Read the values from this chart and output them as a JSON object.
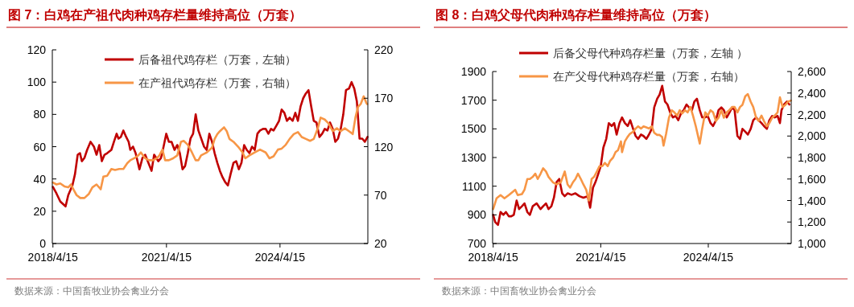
{
  "chart_data": [
    {
      "type": "line",
      "title": "图 7：白鸡在产祖代肉种鸡存栏量维持高位（万套）",
      "legend": "top",
      "grid": false,
      "line_style": "solid",
      "marker": "none",
      "xlim": [
        "2018-04-09",
        "2026-08-11"
      ],
      "xticks": [
        {
          "value": "2018-04-15",
          "label": "2018/4/15"
        },
        {
          "value": "2021-04-15",
          "label": "2021/4/15"
        },
        {
          "value": "2024-04-15",
          "label": "2024/4/15"
        }
      ],
      "ylim": [
        0,
        120
      ],
      "yticks": [
        0,
        20,
        40,
        60,
        80,
        100,
        120
      ],
      "y2lim": [
        20,
        220
      ],
      "y2ticks": [
        20,
        70,
        120,
        170,
        220
      ],
      "annotations": [
        "数据来源：中国畜牧业协会禽业分会"
      ],
      "series": [
        {
          "name": "后备祖代鸡存栏（万套，左轴）",
          "color": "#c00000",
          "x": [
            "2018-04-15",
            "2018-05-19",
            "2018-06-25",
            "2018-08-15",
            "2018-09-10",
            "2018-10-20",
            "2018-11-14",
            "2018-12-10",
            "2019-01-01",
            "2019-01-19",
            "2019-02-13",
            "2019-03-11",
            "2019-04-13",
            "2019-05-16",
            "2019-06-10",
            "2019-07-06",
            "2019-07-31",
            "2019-08-26",
            "2019-09-21",
            "2019-10-31",
            "2019-11-25",
            "2019-12-21",
            "2020-01-08",
            "2020-01-30",
            "2020-02-24",
            "2020-03-22",
            "2020-04-15",
            "2020-05-01",
            "2020-05-27",
            "2020-06-21",
            "2020-07-28",
            "2020-08-26",
            "2020-09-21",
            "2020-10-16",
            "2020-11-22",
            "2020-12-17",
            "2021-01-26",
            "2021-02-21",
            "2021-03-18",
            "2021-04-13",
            "2021-05-08",
            "2021-06-03",
            "2021-07-02",
            "2021-07-28",
            "2021-08-22",
            "2021-09-17",
            "2021-10-12",
            "2021-11-07",
            "2021-12-03",
            "2021-12-28",
            "2022-01-22",
            "2022-02-17",
            "2022-04-13",
            "2022-05-08",
            "2022-06-03",
            "2022-06-29",
            "2022-07-24",
            "2022-08-19",
            "2022-09-13",
            "2022-10-09",
            "2022-11-03",
            "2022-11-29",
            "2022-12-25",
            "2023-01-22",
            "2023-02-17",
            "2023-03-15",
            "2023-04-09",
            "2023-05-05",
            "2023-05-30",
            "2023-06-25",
            "2023-07-20",
            "2023-08-15",
            "2023-09-10",
            "2023-10-05",
            "2023-11-03",
            "2023-11-29",
            "2023-12-25",
            "2024-01-19",
            "2024-02-13",
            "2024-03-11",
            "2024-04-06",
            "2024-05-01",
            "2024-05-27",
            "2024-06-21",
            "2024-07-17",
            "2024-08-15",
            "2024-09-10",
            "2024-10-05",
            "2024-10-31",
            "2024-11-25",
            "2024-12-21",
            "2025-01-15",
            "2025-02-10",
            "2025-03-07",
            "2025-04-02",
            "2025-05-01",
            "2025-05-27",
            "2025-06-21",
            "2025-07-17",
            "2025-08-11",
            "2025-09-06",
            "2025-10-01",
            "2025-10-27",
            "2025-11-22",
            "2025-12-17",
            "2026-01-12",
            "2026-02-10",
            "2026-03-07",
            "2026-04-02",
            "2026-04-27",
            "2026-05-23",
            "2026-06-18",
            "2026-07-13",
            "2026-08-08"
          ],
          "values": [
            35,
            31,
            26,
            23,
            30,
            36,
            43,
            55,
            56,
            51,
            53,
            58,
            63,
            60,
            55,
            61,
            51,
            55,
            56,
            58,
            63,
            68,
            65,
            66,
            70,
            66,
            63,
            58,
            60,
            56,
            46,
            53,
            55,
            51,
            45,
            55,
            51,
            53,
            60,
            68,
            63,
            63,
            58,
            61,
            56,
            46,
            48,
            56,
            65,
            68,
            80,
            70,
            60,
            58,
            68,
            63,
            56,
            50,
            45,
            41,
            38,
            36,
            43,
            50,
            51,
            46,
            50,
            61,
            58,
            56,
            60,
            58,
            68,
            70,
            71,
            71,
            68,
            71,
            70,
            73,
            76,
            83,
            81,
            76,
            78,
            76,
            81,
            76,
            85,
            90,
            93,
            95,
            85,
            76,
            75,
            66,
            68,
            71,
            70,
            75,
            71,
            63,
            65,
            71,
            80,
            95,
            96,
            100,
            96,
            88,
            65,
            65,
            63,
            66
          ]
        },
        {
          "name": "在产祖代鸡存栏（万套，右轴）",
          "color": "#f79646",
          "axis": "y2",
          "x": [
            "2018-04-15",
            "2018-05-19",
            "2018-06-25",
            "2018-08-04",
            "2018-09-10",
            "2018-10-05",
            "2018-11-03",
            "2018-11-29",
            "2019-01-04",
            "2019-02-13",
            "2019-03-26",
            "2019-05-01",
            "2019-06-10",
            "2019-07-20",
            "2019-08-15",
            "2019-09-21",
            "2019-10-31",
            "2019-12-06",
            "2020-01-15",
            "2020-02-24",
            "2020-04-02",
            "2020-05-01",
            "2020-06-07",
            "2020-07-17",
            "2020-08-11",
            "2020-09-21",
            "2020-10-27",
            "2020-12-06",
            "2021-01-12",
            "2021-02-06",
            "2021-03-07",
            "2021-04-02",
            "2021-05-08",
            "2021-06-18",
            "2021-07-28",
            "2021-09-02",
            "2021-09-28",
            "2021-11-07",
            "2021-12-17",
            "2022-01-22",
            "2022-02-17",
            "2022-03-15",
            "2022-05-08",
            "2022-06-29",
            "2022-07-24",
            "2022-08-19",
            "2022-09-13",
            "2022-10-23",
            "2022-11-18",
            "2022-12-14",
            "2023-01-22",
            "2023-03-15",
            "2023-04-20",
            "2023-05-16",
            "2023-06-25",
            "2023-08-15",
            "2023-10-05",
            "2023-11-29",
            "2024-01-04",
            "2024-02-13",
            "2024-03-26",
            "2024-05-01",
            "2024-06-10",
            "2024-07-17",
            "2024-08-26",
            "2024-10-05",
            "2024-11-11",
            "2024-12-21",
            "2025-01-30",
            "2025-03-07",
            "2025-04-15",
            "2025-05-12",
            "2025-06-21",
            "2025-07-28",
            "2025-09-06",
            "2025-10-16",
            "2025-11-22",
            "2026-01-01",
            "2026-02-10",
            "2026-03-18",
            "2026-04-13",
            "2026-05-08",
            "2026-06-03",
            "2026-07-02",
            "2026-07-28",
            "2026-08-04"
          ],
          "values": [
            83,
            81,
            82,
            79,
            78,
            81,
            75,
            70,
            67,
            67,
            71,
            78,
            81,
            76,
            89,
            90,
            97,
            96,
            97,
            97,
            103,
            106,
            108,
            111,
            114,
            108,
            106,
            106,
            108,
            111,
            117,
            106,
            106,
            108,
            111,
            125,
            126,
            122,
            114,
            106,
            106,
            111,
            114,
            119,
            128,
            133,
            136,
            140,
            136,
            128,
            125,
            119,
            114,
            108,
            111,
            114,
            117,
            114,
            108,
            110,
            117,
            118,
            122,
            128,
            133,
            135,
            130,
            128,
            126,
            128,
            139,
            150,
            148,
            144,
            136,
            139,
            136,
            139,
            136,
            133,
            150,
            161,
            164,
            172,
            165,
            164
          ]
        }
      ]
    },
    {
      "type": "line",
      "title": "图 8：白鸡父母代肉种鸡存栏量维持高位（万套）",
      "legend": "top",
      "grid": false,
      "line_style": "solid",
      "marker": "none",
      "xlim": [
        "2018-04-09",
        "2026-08-08"
      ],
      "xticks": [
        {
          "value": "2018-04-15",
          "label": "2018/4/15"
        },
        {
          "value": "2021-04-15",
          "label": "2021/4/15"
        },
        {
          "value": "2024-04-15",
          "label": "2024/4/15"
        }
      ],
      "ylim": [
        700,
        1900
      ],
      "yticks": [
        700,
        900,
        1100,
        1300,
        1500,
        1700,
        1900
      ],
      "y2lim": [
        1000,
        2600
      ],
      "y2ticks": [
        {
          "value": 1000,
          "label": "1,000"
        },
        {
          "value": 1200,
          "label": "1,200"
        },
        {
          "value": 1400,
          "label": "1,400"
        },
        {
          "value": 1600,
          "label": "1,600"
        },
        {
          "value": 1800,
          "label": "1,800"
        },
        {
          "value": 2000,
          "label": "2,000"
        },
        {
          "value": 2200,
          "label": "2,200"
        },
        {
          "value": 2400,
          "label": "2,400"
        },
        {
          "value": 2600,
          "label": "2,600"
        }
      ],
      "annotations": [
        "数据来源：中国畜牧业协会禽业分会"
      ],
      "series": [
        {
          "name": "后备父母代种鸡存栏量（万套，左轴 ）",
          "color": "#c00000",
          "x": [
            "2018-04-15",
            "2018-05-05",
            "2018-06-03",
            "2018-06-29",
            "2018-07-28",
            "2018-08-22",
            "2018-09-21",
            "2018-10-16",
            "2018-11-11",
            "2018-12-10",
            "2019-01-04",
            "2019-02-02",
            "2019-02-28",
            "2019-03-29",
            "2019-04-24",
            "2019-05-23",
            "2019-07-02",
            "2019-08-11",
            "2019-09-06",
            "2019-10-05",
            "2019-10-31",
            "2019-11-29",
            "2019-12-25",
            "2020-01-22",
            "2020-02-17",
            "2020-03-18",
            "2020-04-13",
            "2020-05-12",
            "2020-06-21",
            "2020-07-31",
            "2020-09-10",
            "2020-10-20",
            "2020-12-03",
            "2020-12-28",
            "2021-01-26",
            "2021-02-21",
            "2021-03-18",
            "2021-04-15",
            "2021-05-12",
            "2021-06-10",
            "2021-07-06",
            "2021-08-04",
            "2021-08-30",
            "2021-09-24",
            "2021-10-23",
            "2021-11-18",
            "2021-12-17",
            "2022-01-15",
            "2022-02-10",
            "2022-03-11",
            "2022-04-06",
            "2022-05-01",
            "2022-05-30",
            "2022-06-25",
            "2022-07-24",
            "2022-08-19",
            "2022-09-17",
            "2022-10-12",
            "2022-11-11",
            "2022-12-06",
            "2023-01-01",
            "2023-01-30",
            "2023-02-24",
            "2023-03-26",
            "2023-04-20",
            "2023-05-19",
            "2023-06-14",
            "2023-07-13",
            "2023-08-08",
            "2023-09-06",
            "2023-10-01",
            "2023-10-31",
            "2023-11-25",
            "2023-12-21",
            "2024-01-19",
            "2024-02-13",
            "2024-03-15",
            "2024-04-09",
            "2024-05-08",
            "2024-06-03",
            "2024-07-02",
            "2024-07-28",
            "2024-08-26",
            "2024-09-21",
            "2024-10-20",
            "2024-11-14",
            "2024-12-14",
            "2025-01-08",
            "2025-02-06",
            "2025-03-04",
            "2025-03-29",
            "2025-04-27",
            "2025-05-23",
            "2025-06-21",
            "2025-07-17",
            "2025-08-15",
            "2025-09-10",
            "2025-10-09",
            "2025-11-03",
            "2025-12-03",
            "2025-12-28",
            "2026-01-26",
            "2026-02-21",
            "2026-03-22",
            "2026-04-15",
            "2026-05-01",
            "2026-05-27",
            "2026-06-25",
            "2026-07-20"
          ],
          "values": [
            900,
            850,
            830,
            920,
            900,
            920,
            890,
            890,
            900,
            1000,
            940,
            960,
            980,
            920,
            900,
            960,
            980,
            940,
            960,
            980,
            940,
            960,
            1020,
            1130,
            1150,
            1050,
            1030,
            1050,
            1040,
            1050,
            1030,
            1020,
            1030,
            950,
            1090,
            1130,
            1180,
            1240,
            1370,
            1430,
            1540,
            1520,
            1540,
            1460,
            1540,
            1580,
            1540,
            1520,
            1560,
            1500,
            1450,
            1430,
            1460,
            1450,
            1430,
            1460,
            1500,
            1650,
            1710,
            1740,
            1800,
            1690,
            1670,
            1610,
            1580,
            1590,
            1560,
            1610,
            1630,
            1670,
            1650,
            1630,
            1690,
            1710,
            1630,
            1580,
            1580,
            1590,
            1540,
            1520,
            1560,
            1630,
            1650,
            1630,
            1580,
            1610,
            1650,
            1630,
            1450,
            1430,
            1500,
            1480,
            1460,
            1500,
            1560,
            1580,
            1560,
            1540,
            1520,
            1500,
            1560,
            1590,
            1580,
            1590,
            1540,
            1630,
            1670,
            1690,
            1670
          ]
        },
        {
          "name": "在产父母代种鸡存栏量（万套，右轴）",
          "color": "#f79646",
          "axis": "y2",
          "x": [
            "2018-04-15",
            "2018-05-19",
            "2018-06-29",
            "2018-08-08",
            "2018-09-21",
            "2018-10-31",
            "2018-11-25",
            "2018-12-21",
            "2019-02-02",
            "2019-02-28",
            "2019-03-29",
            "2019-04-24",
            "2019-05-23",
            "2019-06-18",
            "2019-07-13",
            "2019-08-11",
            "2019-09-06",
            "2019-10-05",
            "2019-10-31",
            "2019-12-14",
            "2020-01-22",
            "2020-03-04",
            "2020-04-13",
            "2020-05-12",
            "2020-06-07",
            "2020-07-06",
            "2020-07-31",
            "2020-08-26",
            "2020-09-24",
            "2020-10-20",
            "2020-11-18",
            "2020-12-14",
            "2021-01-12",
            "2021-02-06",
            "2021-03-07",
            "2021-04-02",
            "2021-05-01",
            "2021-05-27",
            "2021-06-25",
            "2021-07-20",
            "2021-08-19",
            "2021-09-13",
            "2021-10-09",
            "2021-11-07",
            "2021-11-18",
            "2021-12-17",
            "2022-01-12",
            "2022-02-06",
            "2022-03-11",
            "2022-04-06",
            "2022-05-01",
            "2022-05-30",
            "2022-06-25",
            "2022-07-24",
            "2022-08-19",
            "2022-09-17",
            "2022-10-12",
            "2022-11-11",
            "2022-12-06",
            "2023-01-01",
            "2023-01-15",
            "2023-02-10",
            "2023-03-11",
            "2023-04-09",
            "2023-05-05",
            "2023-06-03",
            "2023-06-29",
            "2023-07-24",
            "2023-08-22",
            "2023-09-17",
            "2023-10-16",
            "2023-11-11",
            "2023-12-10",
            "2024-01-04",
            "2024-01-19",
            "2024-02-13",
            "2024-03-15",
            "2024-04-09",
            "2024-05-08",
            "2024-06-03",
            "2024-07-02",
            "2024-07-28",
            "2024-08-26",
            "2024-09-21",
            "2024-10-20",
            "2024-11-14",
            "2024-12-14",
            "2025-01-08",
            "2025-02-06",
            "2025-03-04",
            "2025-03-29",
            "2025-04-27",
            "2025-05-23",
            "2025-06-21",
            "2025-07-17",
            "2025-08-15",
            "2025-09-10",
            "2025-10-09",
            "2025-11-03",
            "2025-12-03",
            "2025-12-28",
            "2026-01-26",
            "2026-02-21",
            "2026-03-22",
            "2026-04-15",
            "2026-05-12",
            "2026-06-10",
            "2026-07-06",
            "2026-08-04"
          ],
          "values": [
            1320,
            1420,
            1450,
            1420,
            1450,
            1480,
            1500,
            1450,
            1460,
            1500,
            1600,
            1600,
            1620,
            1650,
            1600,
            1650,
            1700,
            1670,
            1620,
            1570,
            1550,
            1570,
            1670,
            1550,
            1520,
            1570,
            1600,
            1650,
            1600,
            1550,
            1500,
            1400,
            1600,
            1620,
            1670,
            1720,
            1720,
            1750,
            1720,
            1770,
            1800,
            1850,
            1870,
            1950,
            1850,
            1950,
            1990,
            2020,
            2040,
            2070,
            2090,
            2070,
            2090,
            2080,
            2070,
            2090,
            2030,
            2010,
            2010,
            1990,
            1910,
            2020,
            2170,
            2240,
            2220,
            2190,
            2240,
            2210,
            2240,
            2220,
            2270,
            2190,
            2090,
            1990,
            1930,
            2070,
            2220,
            2190,
            2240,
            2220,
            2140,
            2170,
            2240,
            2170,
            2220,
            2240,
            2270,
            2270,
            2220,
            2270,
            2290,
            2370,
            2390,
            2320,
            2270,
            2170,
            2140,
            2190,
            2140,
            2090,
            2120,
            2170,
            2190,
            2220,
            2360,
            2270,
            2290,
            2320,
            2330
          ]
        }
      ]
    }
  ]
}
